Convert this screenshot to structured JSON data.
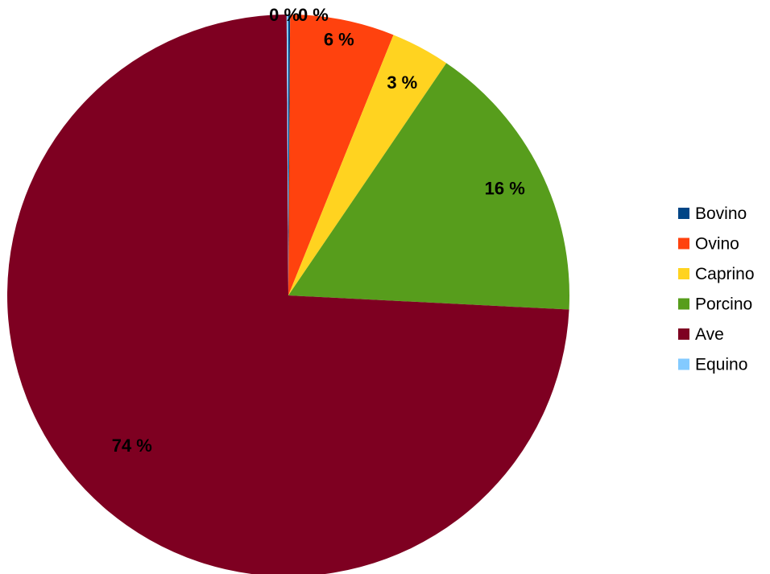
{
  "chart_data": {
    "type": "pie",
    "start_angle": "top",
    "direction": "clockwise",
    "slices": [
      {
        "label": "Bovino",
        "value": 0.1,
        "value_label": "0 %",
        "color": "#004586"
      },
      {
        "label": "Ovino",
        "value": 6.0,
        "value_label": "6 %",
        "color": "#ff420e"
      },
      {
        "label": "Caprino",
        "value": 3.4,
        "value_label": "3 %",
        "color": "#ffd320"
      },
      {
        "label": "Porcino",
        "value": 16.3,
        "value_label": "16 %",
        "color": "#579d1c"
      },
      {
        "label": "Ave",
        "value": 74.1,
        "value_label": "74 %",
        "color": "#7e0021"
      },
      {
        "label": "Equino",
        "value": 0.1,
        "value_label": "0 %",
        "color": "#83caff"
      }
    ],
    "legend": {
      "position": "right"
    }
  }
}
